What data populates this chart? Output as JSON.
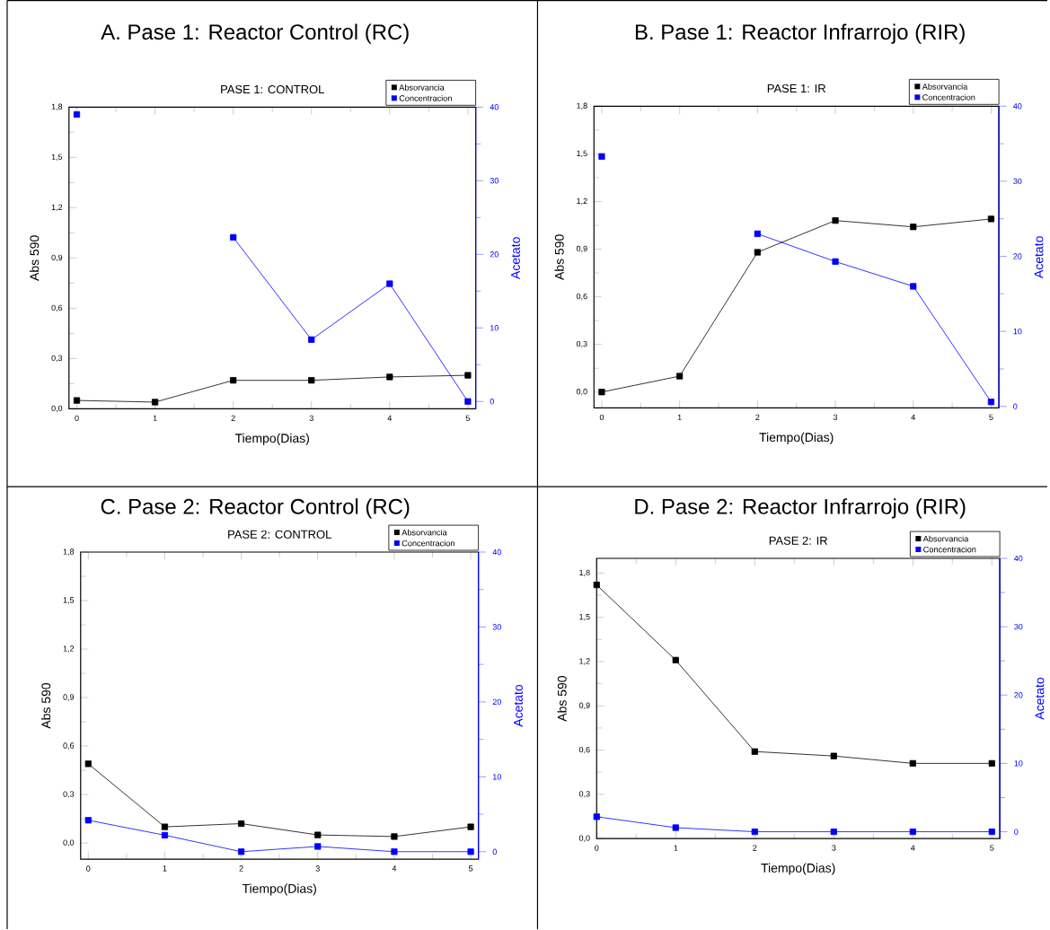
{
  "chart_data": [
    {
      "type": "line",
      "title": "A. Pase 1: Reactor Control (RC)",
      "subtitle": "PASE 1: CONTROL",
      "xlabel": "Tiempo(Dias)",
      "ylabel": "Abs 590",
      "y2label": "Acetato",
      "marker": "square",
      "legend": "top right",
      "x": [
        0,
        1,
        2,
        3,
        4,
        5
      ],
      "xlim": [
        -0.1,
        5.1
      ],
      "xticks": [
        0,
        1,
        2,
        3,
        4,
        5
      ],
      "ylim": [
        0,
        1.8
      ],
      "yticks": [
        {
          "value": 0,
          "label": "0,0"
        },
        {
          "value": 0.3,
          "label": "0,3"
        },
        {
          "value": 0.6,
          "label": "0,6"
        },
        {
          "value": 0.9,
          "label": "0,9"
        },
        {
          "value": 1.2,
          "label": "1,2"
        },
        {
          "value": 1.5,
          "label": "1,5"
        },
        {
          "value": 1.8,
          "label": "1,8"
        }
      ],
      "y2lim": [
        -1,
        40
      ],
      "y2ticks": [
        0,
        10,
        20,
        30,
        40
      ],
      "series": [
        {
          "name": "Absorvancia",
          "color": "#000000",
          "values": [
            0.05,
            0.04,
            0.17,
            0.17,
            0.19,
            0.2
          ]
        },
        {
          "name": "Concentracion",
          "color": "#0000ff",
          "axis": "y2",
          "values": [
            39,
            null,
            22.3,
            8.4,
            16,
            0
          ]
        }
      ]
    },
    {
      "type": "line",
      "title": "B. Pase 1: Reactor Infrarrojo (RIR)",
      "subtitle": "PASE 1: IR",
      "xlabel": "Tiempo(Dias)",
      "ylabel": "Abs 590",
      "y2label": "Acetato",
      "marker": "square",
      "legend": "top right",
      "x": [
        0,
        1,
        2,
        3,
        4,
        5
      ],
      "xlim": [
        -0.1,
        5.1
      ],
      "xticks": [
        0,
        1,
        2,
        3,
        4,
        5
      ],
      "ylim": [
        -0.1,
        1.8
      ],
      "yticks": [
        {
          "value": 0,
          "label": "0,0"
        },
        {
          "value": 0.3,
          "label": "0,3"
        },
        {
          "value": 0.6,
          "label": "0,6"
        },
        {
          "value": 0.9,
          "label": "0,9"
        },
        {
          "value": 1.2,
          "label": "1,2"
        },
        {
          "value": 1.5,
          "label": "1,5"
        },
        {
          "value": 1.8,
          "label": "1,8"
        }
      ],
      "y2lim": [
        -0.2,
        40
      ],
      "y2ticks": [
        0,
        10,
        20,
        30,
        40
      ],
      "series": [
        {
          "name": "Absorvancia",
          "color": "#000000",
          "values": [
            0,
            0.1,
            0.88,
            1.08,
            1.04,
            1.09
          ]
        },
        {
          "name": "Concentracion",
          "color": "#0000ff",
          "axis": "y2",
          "values": [
            33.3,
            null,
            23,
            19.3,
            16,
            0.6
          ]
        }
      ]
    },
    {
      "type": "line",
      "title": "C. Pase 2: Reactor Control (RC)",
      "subtitle": "PASE 2: CONTROL",
      "xlabel": "Tiempo(Dias)",
      "ylabel": "Abs 590",
      "y2label": "Acetato",
      "marker": "square",
      "legend": "top right",
      "x": [
        0,
        1,
        2,
        3,
        4,
        5
      ],
      "xlim": [
        -0.1,
        5.1
      ],
      "xticks": [
        0,
        1,
        2,
        3,
        4,
        5
      ],
      "ylim": [
        -0.1,
        1.8
      ],
      "yticks": [
        {
          "value": 0,
          "label": "0,0"
        },
        {
          "value": 0.3,
          "label": "0,3"
        },
        {
          "value": 0.6,
          "label": "0,6"
        },
        {
          "value": 0.9,
          "label": "0,9"
        },
        {
          "value": 1.2,
          "label": "1,2"
        },
        {
          "value": 1.5,
          "label": "1,5"
        },
        {
          "value": 1.8,
          "label": "1,8"
        }
      ],
      "y2lim": [
        -1,
        40
      ],
      "y2ticks": [
        0,
        10,
        20,
        30,
        40
      ],
      "series": [
        {
          "name": "Absorvancia",
          "color": "#000000",
          "values": [
            0.49,
            0.1,
            0.12,
            0.05,
            0.04,
            0.1
          ]
        },
        {
          "name": "Concentracion",
          "color": "#0000ff",
          "axis": "y2",
          "values": [
            4.2,
            2.2,
            0,
            0.7,
            0,
            0
          ]
        }
      ]
    },
    {
      "type": "line",
      "title": "D. Pase 2: Reactor Infrarrojo (RIR)",
      "subtitle": "PASE 2: IR",
      "xlabel": "Tiempo(Dias)",
      "ylabel": "Abs 590",
      "y2label": "Acetato",
      "marker": "square",
      "legend": "top right",
      "x": [
        0,
        1,
        2,
        3,
        4,
        5
      ],
      "xlim": [
        0,
        5.1
      ],
      "xticks": [
        0,
        1,
        2,
        3,
        4,
        5
      ],
      "ylim": [
        0,
        1.9
      ],
      "yticks": [
        {
          "value": 0,
          "label": "0,0"
        },
        {
          "value": 0.3,
          "label": "0,3"
        },
        {
          "value": 0.6,
          "label": "0,6"
        },
        {
          "value": 0.9,
          "label": "0,9"
        },
        {
          "value": 1.2,
          "label": "1,2"
        },
        {
          "value": 1.5,
          "label": "1,5"
        },
        {
          "value": 1.8,
          "label": "1,8"
        }
      ],
      "y2lim": [
        -1,
        40
      ],
      "y2ticks": [
        0,
        10,
        20,
        30,
        40
      ],
      "series": [
        {
          "name": "Absorvancia",
          "color": "#000000",
          "values": [
            1.72,
            1.21,
            0.59,
            0.56,
            0.51,
            0.51
          ]
        },
        {
          "name": "Concentracion",
          "color": "#0000ff",
          "axis": "y2",
          "values": [
            2.2,
            0.6,
            0,
            0,
            0,
            0
          ]
        }
      ]
    }
  ]
}
